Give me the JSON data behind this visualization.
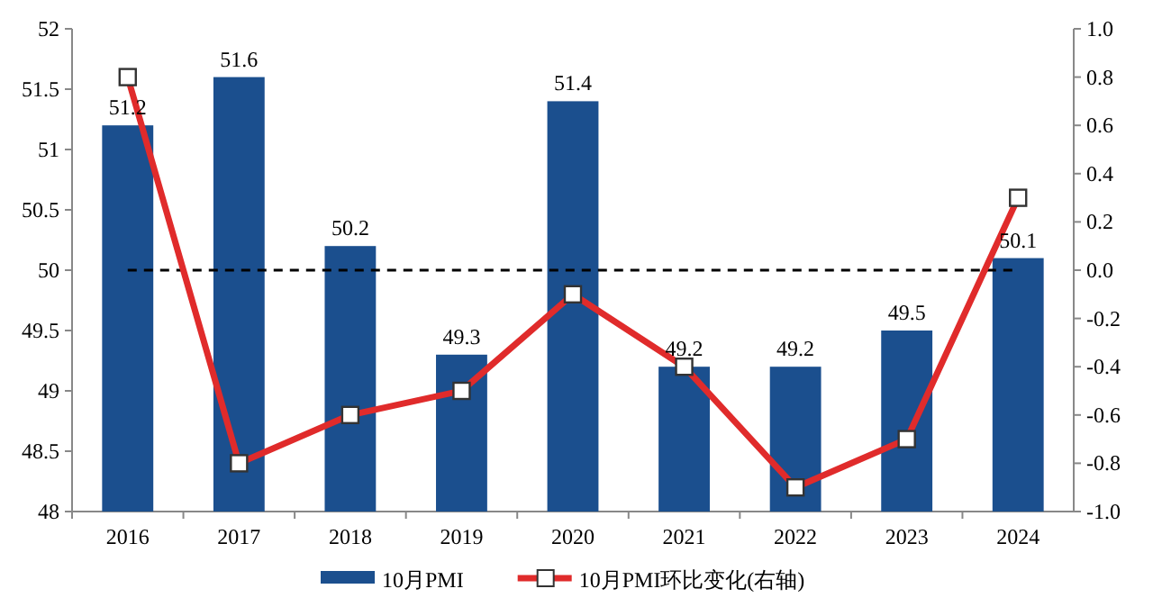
{
  "chart_data": {
    "type": "bar",
    "categories": [
      "2016",
      "2017",
      "2018",
      "2019",
      "2020",
      "2021",
      "2022",
      "2023",
      "2024"
    ],
    "series": [
      {
        "name": "10月PMI",
        "color": "#1b4f8e",
        "values": [
          51.2,
          51.6,
          50.2,
          49.3,
          51.4,
          49.2,
          49.2,
          49.5,
          50.1
        ],
        "value_labels": [
          "51.2",
          "51.6",
          "50.2",
          "49.3",
          "51.4",
          "49.2",
          "49.2",
          "49.5",
          "50.1"
        ]
      },
      {
        "name": "10月PMI环比变化(右轴)",
        "type": "line",
        "axis": "y2",
        "color": "#e02b2b",
        "marker": "square",
        "values": [
          0.8,
          -0.8,
          -0.6,
          -0.5,
          -0.1,
          -0.4,
          -0.9,
          -0.7,
          0.3
        ]
      }
    ],
    "ylim": [
      48,
      52
    ],
    "yticks": [
      48,
      48.5,
      49,
      49.5,
      50,
      50.5,
      51,
      51.5,
      52
    ],
    "y2lim": [
      -1,
      1
    ],
    "y2ticks": [
      {
        "value": -1,
        "label": "-1.0"
      },
      {
        "value": -0.8,
        "label": "-0.8"
      },
      {
        "value": -0.6,
        "label": "-0.6"
      },
      {
        "value": -0.4,
        "label": "-0.4"
      },
      {
        "value": -0.2,
        "label": "-0.2"
      },
      {
        "value": 0,
        "label": "0.0"
      },
      {
        "value": 0.2,
        "label": "0.2"
      },
      {
        "value": 0.4,
        "label": "0.4"
      },
      {
        "value": 0.6,
        "label": "0.6"
      },
      {
        "value": 0.8,
        "label": "0.8"
      },
      {
        "value": 1,
        "label": "1.0"
      }
    ],
    "ref_lines": [
      {
        "axis": "y",
        "value": 50,
        "color": "#000000",
        "line_style": "dashed"
      }
    ],
    "legend": "bottom",
    "grid": false
  }
}
